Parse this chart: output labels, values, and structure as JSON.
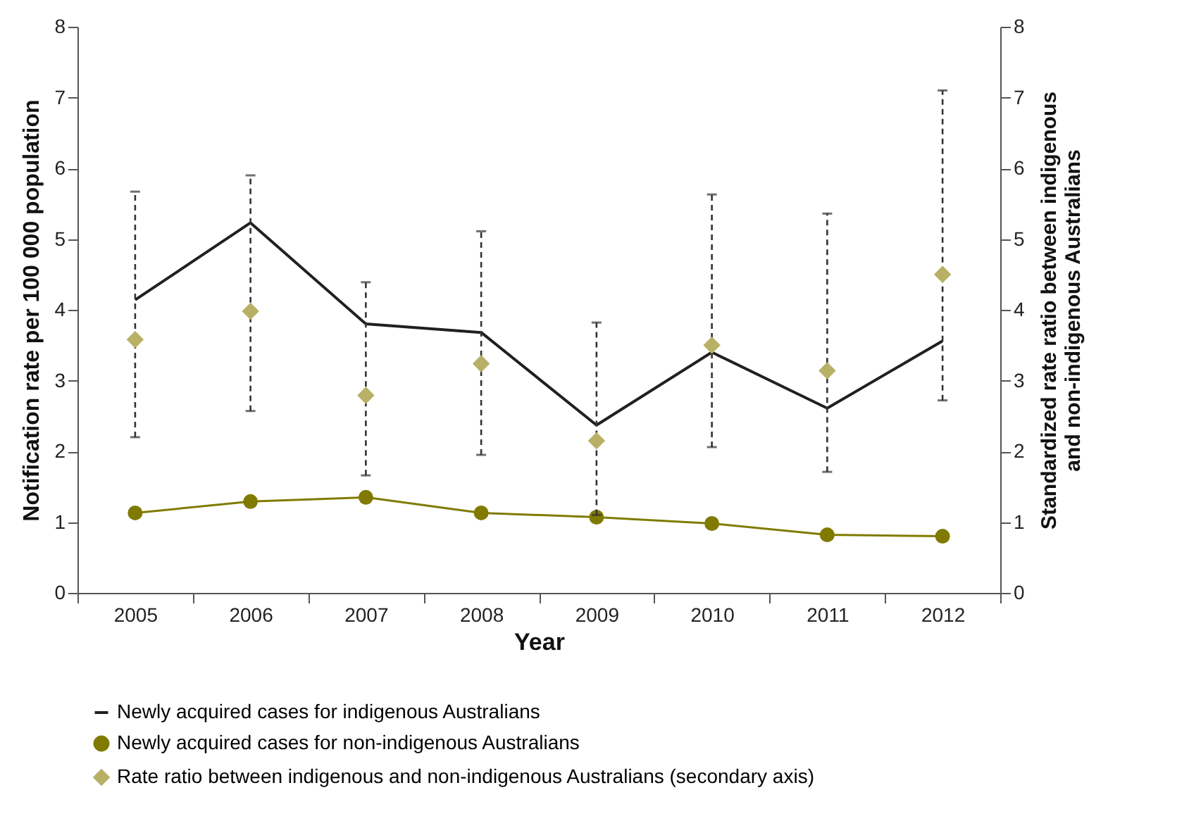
{
  "chart_data": {
    "type": "line",
    "xlabel": "Year",
    "ylabel": "Notification rate per 100 000 population",
    "y2label": "Standardized rate ratio between indigenous and non-indigenous Australians",
    "categories": [
      "2005",
      "2006",
      "2007",
      "2008",
      "2009",
      "2010",
      "2011",
      "2012"
    ],
    "series": [
      {
        "name": "Newly acquired cases for indigenous Australians",
        "color": "#231f20",
        "marker": "none",
        "values": [
          4.14,
          5.23,
          3.8,
          3.68,
          2.37,
          3.4,
          2.61,
          3.56
        ]
      },
      {
        "name": "Newly acquired cases for non-indigenous Australians",
        "color": "#807b00",
        "marker": "circle",
        "values": [
          1.13,
          1.29,
          1.35,
          1.13,
          1.07,
          0.98,
          0.82,
          0.8
        ]
      },
      {
        "name": "Rate ratio between indigenous and non-indigenous Australians (secondary axis)",
        "type": "scatter",
        "axis": "y2",
        "color": "#b8b065",
        "marker": "diamond",
        "values": [
          3.58,
          3.98,
          2.79,
          3.24,
          2.15,
          3.5,
          3.14,
          4.5
        ],
        "errors": [
          [
            2.2,
            5.67
          ],
          [
            2.57,
            5.9
          ],
          [
            1.66,
            4.39
          ],
          [
            1.95,
            5.11
          ],
          [
            1.1,
            3.82
          ],
          [
            2.06,
            5.63
          ],
          [
            1.71,
            5.36
          ],
          [
            2.72,
            7.1
          ]
        ]
      }
    ],
    "ylim": [
      0,
      8
    ],
    "yticks": [
      0,
      1,
      2,
      3,
      4,
      5,
      6,
      7,
      8
    ],
    "y2lim": [
      0,
      8
    ],
    "y2ticks": [
      0,
      1,
      2,
      3,
      4,
      5,
      6,
      7,
      8
    ],
    "grid": false,
    "legend": "bottom left"
  }
}
